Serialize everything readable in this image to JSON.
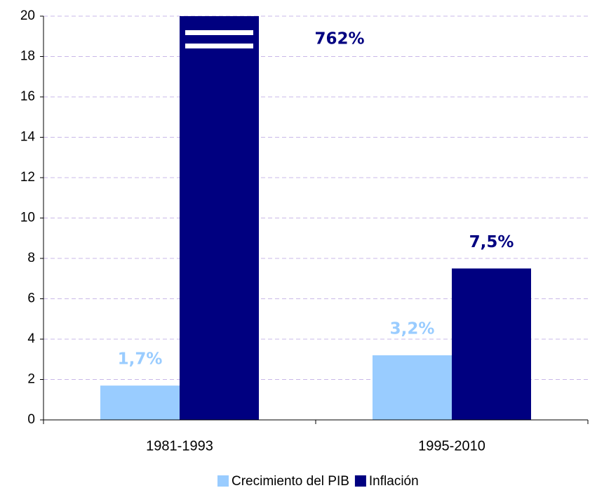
{
  "chart_data": {
    "type": "bar",
    "categories": [
      "1981-1993",
      "1995-2010"
    ],
    "series": [
      {
        "name": "Crecimiento del PIB",
        "color": "#99ccff",
        "values": [
          1.7,
          3.2
        ],
        "value_labels": [
          "1,7%",
          "3,2%"
        ]
      },
      {
        "name": "Inflación",
        "color": "#000080",
        "values": [
          762,
          7.5
        ],
        "value_labels": [
          "762%",
          "7,5%"
        ]
      }
    ],
    "ylim": [
      0,
      20
    ],
    "yticks": [
      0,
      2,
      4,
      6,
      8,
      10,
      12,
      14,
      16,
      18,
      20
    ],
    "grid": true,
    "legend": "bottom"
  }
}
